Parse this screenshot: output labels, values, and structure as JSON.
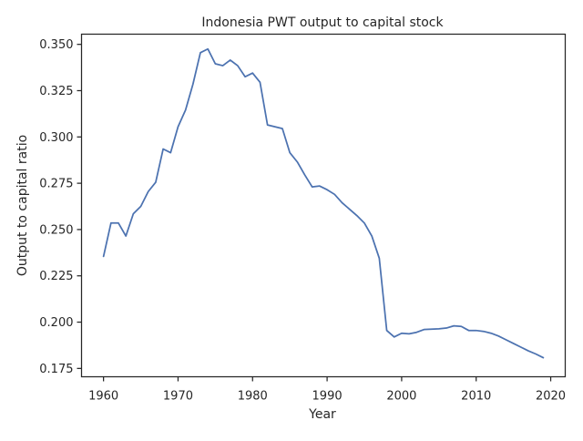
{
  "chart_data": {
    "type": "line",
    "title": "Indonesia PWT output to capital stock",
    "xlabel": "Year",
    "ylabel": "Output to capital ratio",
    "xlim": [
      1957.05,
      2021.95
    ],
    "ylim": [
      0.1705,
      0.3555
    ],
    "xticks": [
      1960,
      1970,
      1980,
      1990,
      2000,
      2010,
      2020
    ],
    "xtick_labels": [
      "1960",
      "1970",
      "1980",
      "1990",
      "2000",
      "2010",
      "2020"
    ],
    "yticks": [
      0.175,
      0.2,
      0.225,
      0.25,
      0.275,
      0.3,
      0.325,
      0.35
    ],
    "ytick_labels": [
      "0.175",
      "0.200",
      "0.225",
      "0.250",
      "0.275",
      "0.300",
      "0.325",
      "0.350"
    ],
    "grid": false,
    "series": [
      {
        "color": "#4c72b0",
        "x": [
          1960,
          1961,
          1962,
          1963,
          1964,
          1965,
          1966,
          1967,
          1968,
          1969,
          1970,
          1971,
          1972,
          1973,
          1974,
          1975,
          1976,
          1977,
          1978,
          1979,
          1980,
          1981,
          1982,
          1983,
          1984,
          1985,
          1986,
          1987,
          1988,
          1989,
          1990,
          1991,
          1992,
          1993,
          1994,
          1995,
          1996,
          1997,
          1998,
          1999,
          2000,
          2001,
          2002,
          2003,
          2004,
          2005,
          2006,
          2007,
          2008,
          2009,
          2010,
          2011,
          2012,
          2013,
          2014,
          2015,
          2016,
          2017,
          2018,
          2019
        ],
        "values": [
          0.2355,
          0.2535,
          0.2535,
          0.2465,
          0.2585,
          0.2625,
          0.2705,
          0.2755,
          0.2935,
          0.2915,
          0.3055,
          0.3145,
          0.3285,
          0.3455,
          0.3475,
          0.3395,
          0.3385,
          0.3415,
          0.3385,
          0.3325,
          0.3345,
          0.3295,
          0.3065,
          0.3055,
          0.3045,
          0.2915,
          0.2865,
          0.2795,
          0.273,
          0.2735,
          0.2715,
          0.269,
          0.2645,
          0.261,
          0.2575,
          0.2535,
          0.2465,
          0.2345,
          0.1955,
          0.192,
          0.194,
          0.1937,
          0.1945,
          0.196,
          0.1962,
          0.1964,
          0.1968,
          0.198,
          0.1977,
          0.1955,
          0.1955,
          0.195,
          0.194,
          0.1925,
          0.1905,
          0.1885,
          0.1865,
          0.1845,
          0.1828,
          0.1808
        ]
      }
    ]
  }
}
